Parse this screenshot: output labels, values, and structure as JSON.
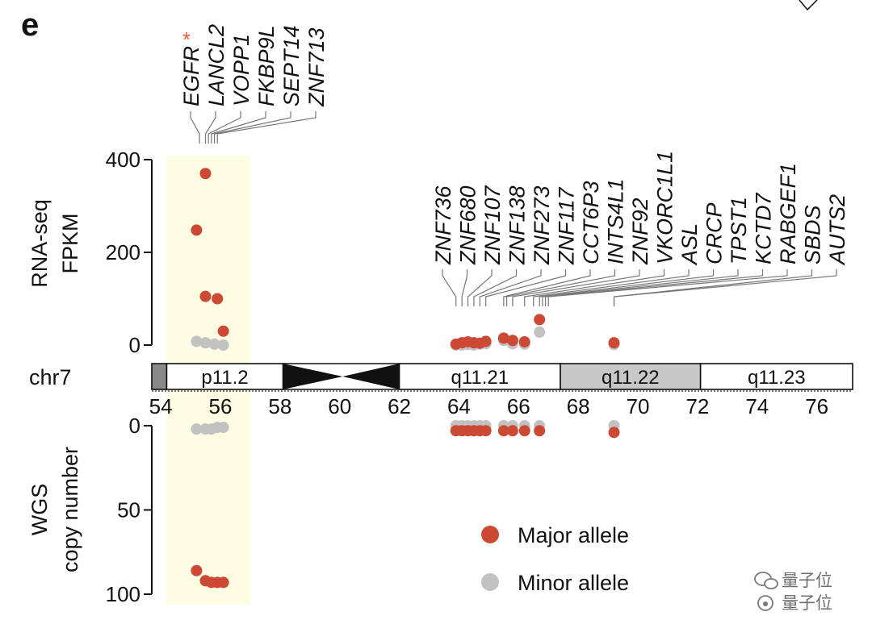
{
  "panel_label": "e",
  "watermark": "量子位",
  "chart_data": [
    {
      "type": "scatter",
      "name": "rna",
      "ylabel": [
        "RNA-seq",
        "FPKM"
      ],
      "ylim": [
        0,
        400
      ],
      "yticks": [
        0,
        200,
        400
      ],
      "series": [
        {
          "key": "major",
          "points": [
            [
              55.2,
              248
            ],
            [
              55.5,
              370
            ],
            [
              55.5,
              105
            ],
            [
              55.9,
              100
            ],
            [
              56.1,
              30
            ],
            [
              63.9,
              2
            ],
            [
              64.1,
              5
            ],
            [
              64.3,
              7
            ],
            [
              64.5,
              5
            ],
            [
              64.7,
              4
            ],
            [
              64.9,
              8
            ],
            [
              65.5,
              15
            ],
            [
              65.8,
              10
            ],
            [
              66.2,
              7
            ],
            [
              66.7,
              55
            ],
            [
              69.2,
              5
            ]
          ]
        },
        {
          "key": "minor",
          "points": [
            [
              55.2,
              8
            ],
            [
              55.5,
              5
            ],
            [
              55.8,
              2
            ],
            [
              56.1,
              0
            ],
            [
              63.9,
              0
            ],
            [
              64.1,
              0
            ],
            [
              64.3,
              1
            ],
            [
              64.5,
              0
            ],
            [
              64.7,
              2
            ],
            [
              64.9,
              3
            ],
            [
              65.5,
              10
            ],
            [
              65.8,
              3
            ],
            [
              66.2,
              2
            ],
            [
              66.7,
              28
            ],
            [
              69.2,
              1
            ]
          ]
        }
      ]
    },
    {
      "type": "scatter",
      "name": "wgs",
      "ylabel": [
        "WGS",
        "copy number"
      ],
      "ylim": [
        0,
        100
      ],
      "yticks": [
        0,
        50,
        100
      ],
      "y_inverted": true,
      "series": [
        {
          "key": "major",
          "points": [
            [
              55.2,
              86
            ],
            [
              55.5,
              92
            ],
            [
              55.7,
              93
            ],
            [
              55.9,
              93
            ],
            [
              56.1,
              93
            ],
            [
              63.9,
              3
            ],
            [
              64.1,
              3
            ],
            [
              64.3,
              3
            ],
            [
              64.5,
              3
            ],
            [
              64.7,
              3
            ],
            [
              64.9,
              3
            ],
            [
              65.5,
              3
            ],
            [
              65.8,
              3
            ],
            [
              66.2,
              3
            ],
            [
              66.7,
              3
            ],
            [
              69.2,
              4
            ]
          ]
        },
        {
          "key": "minor",
          "points": [
            [
              55.2,
              2
            ],
            [
              55.5,
              2
            ],
            [
              55.7,
              2
            ],
            [
              55.9,
              1
            ],
            [
              56.1,
              1
            ],
            [
              63.9,
              0
            ],
            [
              64.1,
              0
            ],
            [
              64.3,
              0
            ],
            [
              64.5,
              0
            ],
            [
              64.7,
              0
            ],
            [
              64.9,
              0
            ],
            [
              65.5,
              0
            ],
            [
              65.8,
              0
            ],
            [
              66.2,
              0
            ],
            [
              66.7,
              0
            ],
            [
              69.2,
              0
            ]
          ]
        }
      ]
    },
    {
      "type": "ideogram",
      "name": "chromosome",
      "chrom_label": "chr7",
      "xlim": [
        53.7,
        77.2
      ],
      "xticks": [
        54,
        56,
        58,
        60,
        62,
        64,
        66,
        68,
        70,
        72,
        74,
        76
      ],
      "bands": [
        {
          "start": 53.7,
          "end": 54.2,
          "label": "",
          "fill": "#8a8a8a"
        },
        {
          "start": 54.2,
          "end": 58.1,
          "label": "p11.2",
          "fill": "#ffffff"
        },
        {
          "start": 58.1,
          "end": 60.1,
          "label": "",
          "fill": "centromere-left"
        },
        {
          "start": 60.1,
          "end": 62.0,
          "label": "",
          "fill": "centromere-right"
        },
        {
          "start": 62.0,
          "end": 67.4,
          "label": "q11.21",
          "fill": "#ffffff"
        },
        {
          "start": 67.4,
          "end": 72.1,
          "label": "q11.22",
          "fill": "#c8c8c8"
        },
        {
          "start": 72.1,
          "end": 77.2,
          "label": "q11.23",
          "fill": "#ffffff"
        }
      ],
      "highlight_region": [
        54.2,
        57.0
      ]
    }
  ],
  "gene_groups": [
    {
      "genes": [
        {
          "name": "EGFR",
          "pos": 55.3,
          "marked": true
        },
        {
          "name": "LANCL2",
          "pos": 55.5
        },
        {
          "name": "VOPP1",
          "pos": 55.6
        },
        {
          "name": "FKBP9L",
          "pos": 55.7
        },
        {
          "name": "SEPT14",
          "pos": 55.8
        },
        {
          "name": "ZNF713",
          "pos": 55.9
        }
      ]
    },
    {
      "genes": [
        {
          "name": "ZNF736",
          "pos": 63.9
        },
        {
          "name": "ZNF680",
          "pos": 64.1
        },
        {
          "name": "ZNF107",
          "pos": 64.3
        },
        {
          "name": "ZNF138",
          "pos": 64.5
        },
        {
          "name": "ZNF273",
          "pos": 64.7
        },
        {
          "name": "ZNF117",
          "pos": 64.9
        },
        {
          "name": "CCT6P3",
          "pos": 65.5
        },
        {
          "name": "INTS4L1",
          "pos": 65.6
        },
        {
          "name": "ZNF92",
          "pos": 65.8
        },
        {
          "name": "VKORC1L1",
          "pos": 66.2
        },
        {
          "name": "ASL",
          "pos": 66.5
        },
        {
          "name": "CRCP",
          "pos": 66.7
        },
        {
          "name": "TPST1",
          "pos": 66.8
        },
        {
          "name": "KCTD7",
          "pos": 66.9
        },
        {
          "name": "RABGEF1",
          "pos": 67.0
        },
        {
          "name": "SBDS",
          "pos": 69.2
        },
        {
          "name": "AUTS2",
          "pos": 69.2
        }
      ]
    }
  ],
  "star_mark": "*",
  "legend": [
    {
      "key": "major",
      "label": "Major allele",
      "color": "#cc4a33"
    },
    {
      "key": "minor",
      "label": "Minor allele",
      "color": "#c2c2c2"
    }
  ],
  "colors": {
    "major": "#cc4a33",
    "minor": "#c2c2c2",
    "highlight": "#fdfde3",
    "star": "#e0603d",
    "axis": "#111111",
    "leader": "#777777"
  }
}
